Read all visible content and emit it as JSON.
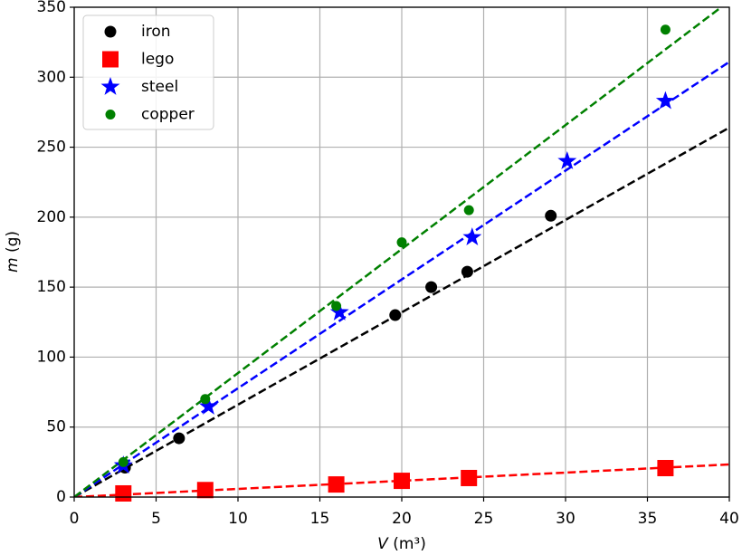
{
  "chart_data": {
    "type": "scatter",
    "xlabel_symbol": "V",
    "xlabel_unit": "(m³)",
    "ylabel_symbol": "m",
    "ylabel_unit": "(g)",
    "xlim": [
      0,
      40
    ],
    "ylim": [
      0,
      350
    ],
    "xticks": [
      0,
      5,
      10,
      15,
      20,
      25,
      30,
      35,
      40
    ],
    "yticks": [
      0,
      50,
      100,
      150,
      200,
      250,
      300,
      350
    ],
    "grid": true,
    "legend": "upper left",
    "series": [
      {
        "name": "iron",
        "color": "#000000",
        "marker": "circle",
        "x": [
          3.1,
          6.4,
          19.6,
          21.8,
          24.0,
          29.1
        ],
        "values": [
          21,
          42,
          130,
          150,
          161,
          201
        ],
        "fit": {
          "x": [
            0,
            40
          ],
          "values": [
            0,
            264
          ]
        }
      },
      {
        "name": "lego",
        "color": "#ff0000",
        "marker": "square",
        "x": [
          3.0,
          8.0,
          16.0,
          20.0,
          24.1,
          36.1
        ],
        "values": [
          2.6,
          5,
          9,
          11.6,
          13.6,
          20.7
        ],
        "fit": {
          "x": [
            0,
            40
          ],
          "values": [
            0,
            23.3
          ]
        }
      },
      {
        "name": "steel",
        "color": "#0000ff",
        "marker": "star",
        "x": [
          3.0,
          8.2,
          16.2,
          24.3,
          30.1,
          36.1
        ],
        "values": [
          22.6,
          64.7,
          132,
          185.6,
          240,
          283
        ],
        "fit": {
          "x": [
            0,
            40
          ],
          "values": [
            0,
            311
          ]
        }
      },
      {
        "name": "copper",
        "color": "#008000",
        "marker": "dot",
        "x": [
          3.0,
          8.0,
          16.0,
          20.0,
          24.1,
          36.1
        ],
        "values": [
          25,
          70,
          136.5,
          182,
          205,
          334
        ],
        "fit": {
          "x": [
            0,
            39.5
          ],
          "values": [
            0,
            350
          ]
        }
      }
    ]
  }
}
